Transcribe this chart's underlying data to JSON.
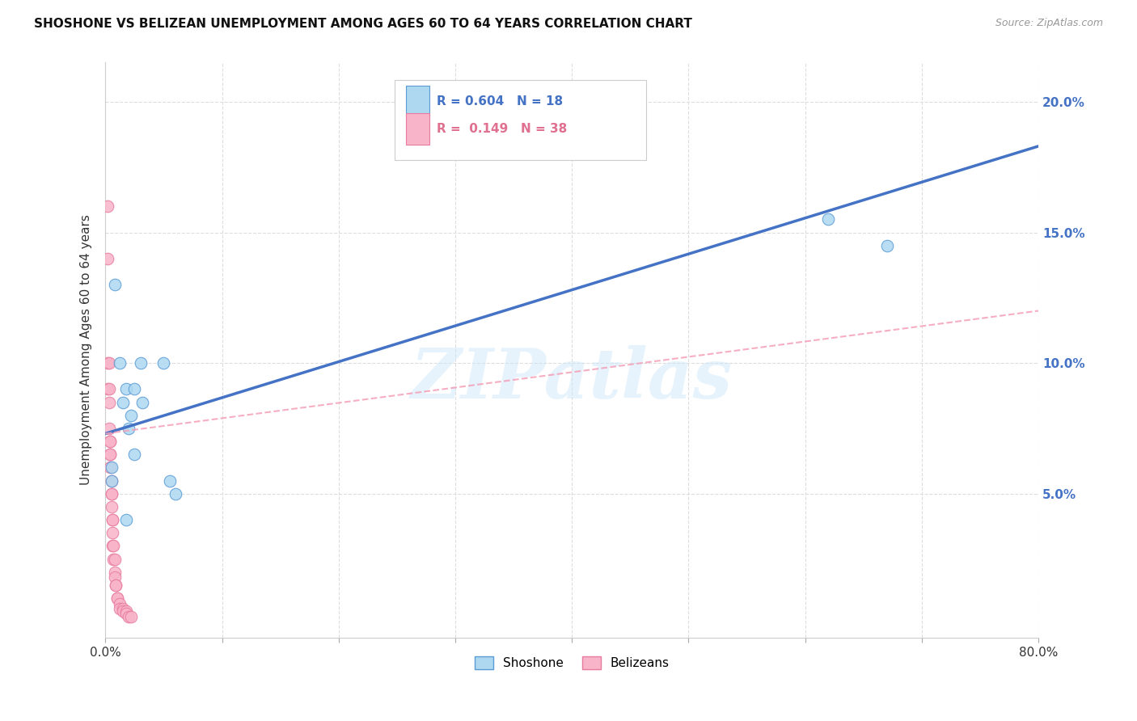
{
  "title": "SHOSHONE VS BELIZEAN UNEMPLOYMENT AMONG AGES 60 TO 64 YEARS CORRELATION CHART",
  "source": "Source: ZipAtlas.com",
  "ylabel": "Unemployment Among Ages 60 to 64 years",
  "shoshone_label": "Shoshone",
  "belizean_label": "Belizeans",
  "shoshone_R": 0.604,
  "shoshone_N": 18,
  "belizean_R": 0.149,
  "belizean_N": 38,
  "shoshone_color": "#add8f0",
  "belizean_color": "#f8b4c8",
  "shoshone_edge_color": "#5b9bd5",
  "belizean_edge_color": "#e87ca0",
  "shoshone_line_color": "#4472C4",
  "belizean_line_color": "#f4a0b8",
  "xlim": [
    0.0,
    0.8
  ],
  "ylim": [
    -0.005,
    0.215
  ],
  "xticks": [
    0.0,
    0.1,
    0.2,
    0.3,
    0.4,
    0.5,
    0.6,
    0.7,
    0.8
  ],
  "yticks": [
    0.0,
    0.05,
    0.1,
    0.15,
    0.2
  ],
  "shoshone_x": [
    0.005,
    0.008,
    0.012,
    0.015,
    0.018,
    0.02,
    0.022,
    0.025,
    0.025,
    0.03,
    0.032,
    0.05,
    0.055,
    0.06,
    0.62,
    0.67,
    0.005,
    0.018
  ],
  "shoshone_y": [
    0.055,
    0.13,
    0.1,
    0.085,
    0.09,
    0.075,
    0.08,
    0.09,
    0.065,
    0.1,
    0.085,
    0.1,
    0.055,
    0.05,
    0.155,
    0.145,
    0.06,
    0.04
  ],
  "belizean_x": [
    0.002,
    0.002,
    0.002,
    0.002,
    0.003,
    0.003,
    0.003,
    0.003,
    0.004,
    0.004,
    0.004,
    0.004,
    0.004,
    0.005,
    0.005,
    0.005,
    0.005,
    0.006,
    0.006,
    0.006,
    0.006,
    0.007,
    0.007,
    0.008,
    0.008,
    0.008,
    0.009,
    0.009,
    0.01,
    0.01,
    0.012,
    0.012,
    0.015,
    0.015,
    0.018,
    0.018,
    0.02,
    0.022
  ],
  "belizean_y": [
    0.16,
    0.14,
    0.1,
    0.09,
    0.1,
    0.09,
    0.085,
    0.075,
    0.07,
    0.07,
    0.065,
    0.065,
    0.06,
    0.055,
    0.05,
    0.05,
    0.045,
    0.04,
    0.04,
    0.035,
    0.03,
    0.03,
    0.025,
    0.025,
    0.02,
    0.018,
    0.015,
    0.015,
    0.01,
    0.01,
    0.008,
    0.006,
    0.006,
    0.005,
    0.005,
    0.004,
    0.003,
    0.003
  ],
  "watermark_text": "ZIPatlas",
  "marker_size": 110,
  "shoshone_line_y0": 0.073,
  "shoshone_line_y1": 0.183,
  "belizean_line_y0": 0.073,
  "belizean_line_y1": 0.12
}
